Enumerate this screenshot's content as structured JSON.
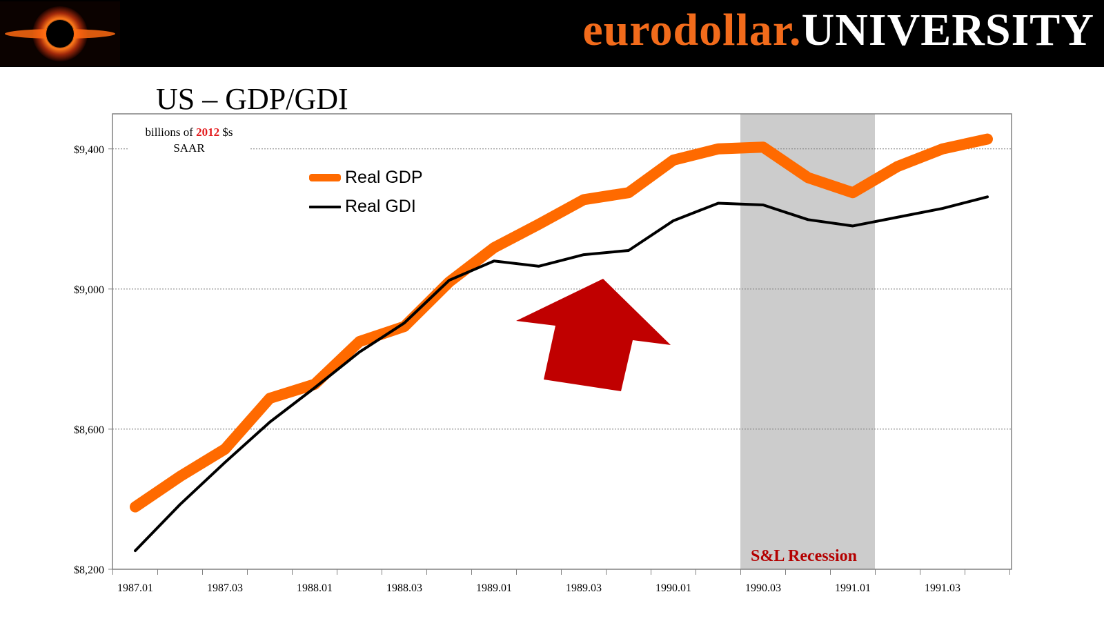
{
  "header": {
    "brand_part1": "eurodollar.",
    "brand_part2": "UNIVERSITY",
    "brand_color_1": "#f26b1b",
    "brand_color_2": "#ffffff",
    "logo_icon": "black-hole-logo-icon"
  },
  "slide": {
    "title": "US – GDP/GDI"
  },
  "annotations": {
    "units_prefix": "billions of",
    "units_year": "2012",
    "units_suffix": "$s",
    "units_line2": "SAAR",
    "recession_label": "S&L Recession",
    "arrow_icon": "up-arrow-icon",
    "arrow_color": "#c00000"
  },
  "chart_data": {
    "type": "line",
    "title": "US – GDP/GDI",
    "ylabel": "billions of 2012 $s SAAR",
    "xlabel": "",
    "ylim": [
      8200,
      9500
    ],
    "yticks": [
      8200,
      8600,
      9000,
      9400
    ],
    "ytick_labels": [
      "$8,200",
      "$8,600",
      "$9,000",
      "$9,400"
    ],
    "x": [
      "1987.01",
      "1987.02",
      "1987.03",
      "1987.04",
      "1988.01",
      "1988.02",
      "1988.03",
      "1988.04",
      "1989.01",
      "1989.02",
      "1989.03",
      "1989.04",
      "1990.01",
      "1990.02",
      "1990.03",
      "1990.04",
      "1991.01",
      "1991.02",
      "1991.03",
      "1991.04"
    ],
    "xtick_labels": [
      "1987.01",
      "1987.03",
      "1988.01",
      "1988.03",
      "1989.01",
      "1989.03",
      "1990.01",
      "1990.03",
      "1991.01",
      "1991.03"
    ],
    "grid": "horizontal",
    "legend_position": "top-left",
    "series": [
      {
        "name": "Real GDP",
        "color": "#ff6a00",
        "values": [
          8378,
          8465,
          8543,
          8688,
          8728,
          8850,
          8893,
          9020,
          9118,
          9185,
          9255,
          9275,
          9368,
          9400,
          9405,
          9318,
          9275,
          9350,
          9400,
          9428
        ]
      },
      {
        "name": "Real GDI",
        "color": "#000000",
        "values": [
          8253,
          8385,
          8505,
          8620,
          8718,
          8820,
          8903,
          9025,
          9080,
          9065,
          9098,
          9110,
          9195,
          9245,
          9240,
          9198,
          9180,
          9205,
          9230,
          9263
        ]
      }
    ],
    "shaded_region": {
      "label": "S&L Recession",
      "from": "1990.03",
      "to": "1991.01",
      "color": "#cccccc"
    }
  }
}
